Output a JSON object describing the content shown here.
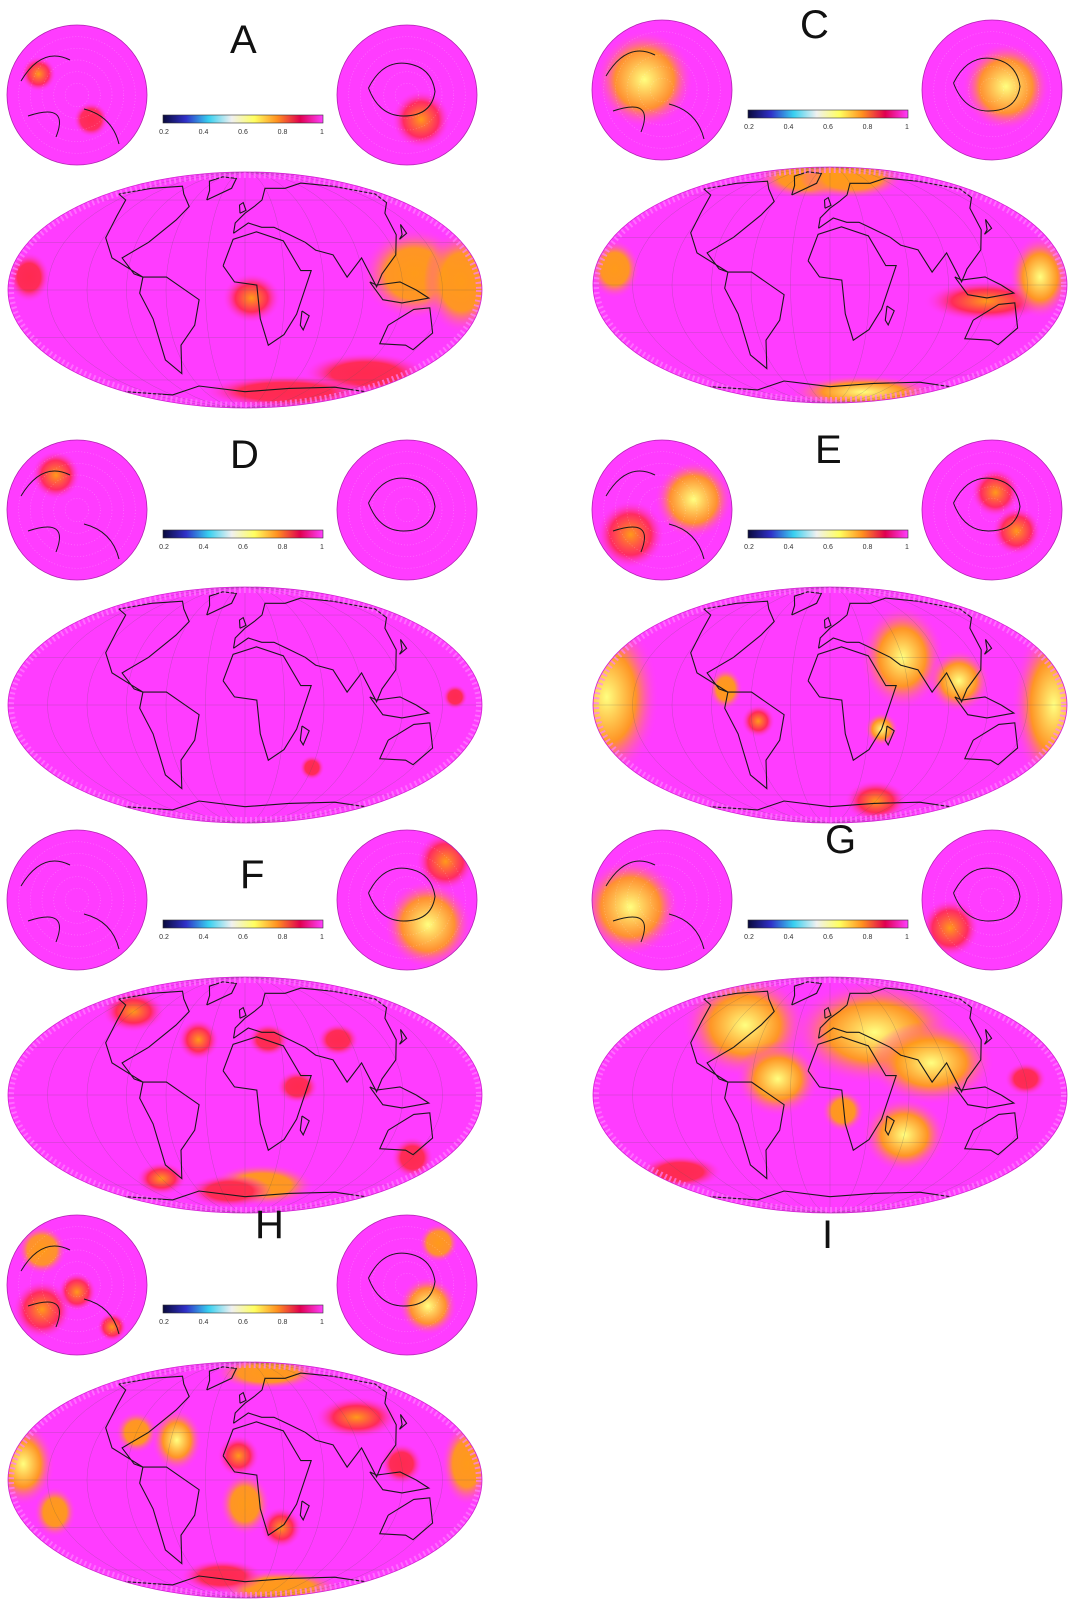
{
  "colorbar": {
    "ticks": [
      "0.2",
      "0.4",
      "0.6",
      "0.8",
      "1"
    ],
    "stops": [
      "#0a0a3c",
      "#3030c8",
      "#38d0f0",
      "#f0f0f0",
      "#ffff60",
      "#ff9020",
      "#e00050",
      "#ff40ff"
    ]
  },
  "colors": {
    "background": "#ff3cff",
    "mid": "#ff2a50",
    "high": "#ff9a1a",
    "peak": "#ffff80",
    "coast": "#1a1a1a"
  },
  "panels": [
    {
      "label": "A",
      "hot": [
        [
          -165,
          8,
          10,
          12,
          0.5
        ],
        [
          5,
          -5,
          14,
          12,
          0.6
        ],
        [
          130,
          10,
          25,
          22,
          0.65
        ],
        [
          165,
          5,
          18,
          25,
          0.8
        ],
        [
          130,
          -55,
          30,
          10,
          0.5
        ],
        [
          60,
          -70,
          40,
          8,
          0.4
        ]
      ],
      "north_hot": [
        [
          -0.55,
          -0.3,
          0.18,
          0.7
        ],
        [
          0.2,
          0.35,
          0.18,
          0.55
        ]
      ],
      "south_hot": [
        [
          0.2,
          0.35,
          0.3,
          0.6
        ]
      ]
    },
    {
      "label": "C",
      "hot": [
        [
          -165,
          10,
          12,
          14,
          0.7
        ],
        [
          -40,
          75,
          25,
          10,
          0.8
        ],
        [
          40,
          75,
          25,
          10,
          0.7
        ],
        [
          120,
          -10,
          30,
          10,
          0.6
        ],
        [
          160,
          5,
          15,
          20,
          0.9
        ],
        [
          60,
          -75,
          35,
          8,
          0.9
        ]
      ],
      "north_hot": [
        [
          -0.25,
          -0.15,
          0.5,
          0.95
        ]
      ],
      "south_hot": [
        [
          0.2,
          -0.05,
          0.45,
          0.95
        ]
      ]
    },
    {
      "label": "D",
      "hot": [
        [
          160,
          5,
          6,
          6,
          0.3
        ],
        [
          60,
          -40,
          6,
          6,
          0.3
        ]
      ],
      "north_hot": [
        [
          -0.3,
          -0.5,
          0.25,
          0.7
        ]
      ],
      "south_hot": []
    },
    {
      "label": "E",
      "hot": [
        [
          -170,
          5,
          25,
          40,
          1
        ],
        [
          -80,
          10,
          8,
          10,
          0.8
        ],
        [
          -55,
          -10,
          8,
          8,
          0.6
        ],
        [
          40,
          -15,
          8,
          8,
          0.9
        ],
        [
          60,
          30,
          20,
          25,
          0.9
        ],
        [
          100,
          15,
          15,
          15,
          0.9
        ],
        [
          170,
          0,
          20,
          40,
          1
        ],
        [
          60,
          -65,
          15,
          10,
          0.6
        ]
      ],
      "north_hot": [
        [
          0.45,
          -0.15,
          0.4,
          0.9
        ],
        [
          -0.45,
          0.35,
          0.35,
          0.7
        ]
      ],
      "south_hot": [
        [
          0.05,
          -0.25,
          0.25,
          0.7
        ],
        [
          0.35,
          0.3,
          0.25,
          0.6
        ]
      ]
    },
    {
      "label": "F",
      "hot": [
        [
          -120,
          55,
          15,
          10,
          0.6
        ],
        [
          -40,
          35,
          10,
          10,
          0.6
        ],
        [
          20,
          35,
          10,
          8,
          0.5
        ],
        [
          40,
          5,
          10,
          8,
          0.4
        ],
        [
          80,
          35,
          10,
          8,
          0.4
        ],
        [
          -90,
          -55,
          12,
          8,
          0.6
        ],
        [
          20,
          -60,
          25,
          10,
          0.7
        ],
        [
          -20,
          -65,
          20,
          8,
          0.5
        ],
        [
          150,
          -40,
          10,
          10,
          0.4
        ]
      ],
      "north_hot": [],
      "south_hot": [
        [
          0.3,
          0.35,
          0.45,
          0.9
        ],
        [
          0.55,
          -0.55,
          0.3,
          0.7
        ]
      ]
    },
    {
      "label": "G",
      "hot": [
        [
          -80,
          45,
          30,
          25,
          1
        ],
        [
          -40,
          10,
          20,
          18,
          0.9
        ],
        [
          40,
          40,
          40,
          25,
          1
        ],
        [
          80,
          20,
          30,
          20,
          0.9
        ],
        [
          60,
          -25,
          20,
          18,
          0.9
        ],
        [
          10,
          -10,
          10,
          10,
          0.7
        ],
        [
          -150,
          -50,
          20,
          8,
          0.5
        ],
        [
          150,
          10,
          10,
          8,
          0.4
        ]
      ],
      "north_hot": [
        [
          -0.45,
          0.1,
          0.5,
          0.95
        ]
      ],
      "south_hot": [
        [
          -0.6,
          0.4,
          0.3,
          0.7
        ]
      ]
    },
    {
      "label": "H",
      "hot": [
        [
          -170,
          10,
          15,
          20,
          1
        ],
        [
          -150,
          -20,
          10,
          12,
          0.7
        ],
        [
          -90,
          30,
          10,
          10,
          0.8
        ],
        [
          -55,
          25,
          12,
          15,
          0.9
        ],
        [
          -5,
          15,
          10,
          10,
          0.6
        ],
        [
          0,
          -15,
          12,
          15,
          0.8
        ],
        [
          30,
          -30,
          10,
          10,
          0.6
        ],
        [
          100,
          40,
          20,
          10,
          0.6
        ],
        [
          120,
          10,
          10,
          10,
          0.5
        ],
        [
          170,
          10,
          12,
          20,
          0.8
        ],
        [
          60,
          -75,
          30,
          8,
          0.8
        ],
        [
          -30,
          -65,
          20,
          8,
          0.5
        ],
        [
          40,
          75,
          25,
          8,
          0.7
        ]
      ],
      "north_hot": [
        [
          -0.5,
          -0.5,
          0.25,
          0.8
        ],
        [
          0,
          0.1,
          0.2,
          0.7
        ],
        [
          -0.5,
          0.35,
          0.3,
          0.7
        ],
        [
          0.5,
          0.6,
          0.15,
          0.6
        ]
      ],
      "south_hot": [
        [
          0.45,
          -0.6,
          0.2,
          0.8
        ],
        [
          0.3,
          0.3,
          0.3,
          0.95
        ]
      ]
    }
  ],
  "extra_label": "I"
}
